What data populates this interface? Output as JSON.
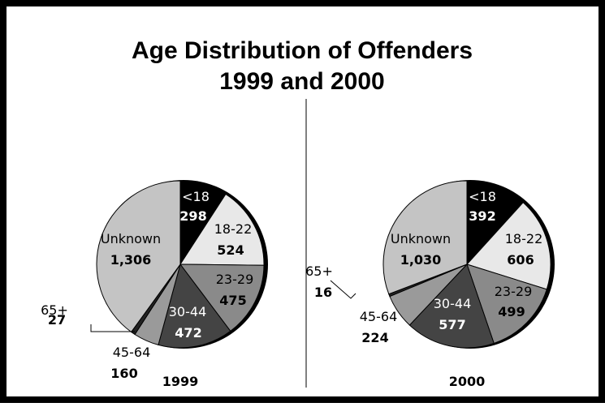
{
  "chart_data": [
    {
      "type": "pie",
      "title": "Age Distribution of Offenders",
      "subtitle": "1999 and 2000",
      "year_label": "1999",
      "slices": [
        {
          "label": "<18",
          "value": 298,
          "value_text": "298",
          "color": "#000000",
          "text_color": "#ffffff"
        },
        {
          "label": "18-22",
          "value": 524,
          "value_text": "524",
          "color": "#e8e8e8",
          "text_color": "#000000"
        },
        {
          "label": "23-29",
          "value": 475,
          "value_text": "475",
          "color": "#8a8a8a",
          "text_color": "#000000"
        },
        {
          "label": "30-44",
          "value": 472,
          "value_text": "472",
          "color": "#444444",
          "text_color": "#ffffff"
        },
        {
          "label": "45-64",
          "value": 160,
          "value_text": "160",
          "color": "#9a9a9a",
          "text_color": "#000000"
        },
        {
          "label": "65+",
          "value": 27,
          "value_text": "27",
          "color": "#222222",
          "text_color": "#000000"
        },
        {
          "label": "Unknown",
          "value": 1306,
          "value_text": "1,306",
          "color": "#c4c4c4",
          "text_color": "#000000"
        }
      ]
    },
    {
      "type": "pie",
      "year_label": "2000",
      "slices": [
        {
          "label": "<18",
          "value": 392,
          "value_text": "392",
          "color": "#000000",
          "text_color": "#ffffff"
        },
        {
          "label": "18-22",
          "value": 606,
          "value_text": "606",
          "color": "#e8e8e8",
          "text_color": "#000000"
        },
        {
          "label": "23-29",
          "value": 499,
          "value_text": "499",
          "color": "#8a8a8a",
          "text_color": "#000000"
        },
        {
          "label": "30-44",
          "value": 577,
          "value_text": "577",
          "color": "#444444",
          "text_color": "#ffffff"
        },
        {
          "label": "45-64",
          "value": 224,
          "value_text": "224",
          "color": "#9a9a9a",
          "text_color": "#000000"
        },
        {
          "label": "65+",
          "value": 16,
          "value_text": "16",
          "color": "#222222",
          "text_color": "#000000"
        },
        {
          "label": "Unknown",
          "value": 1030,
          "value_text": "1,030",
          "color": "#c4c4c4",
          "text_color": "#000000"
        }
      ]
    }
  ]
}
